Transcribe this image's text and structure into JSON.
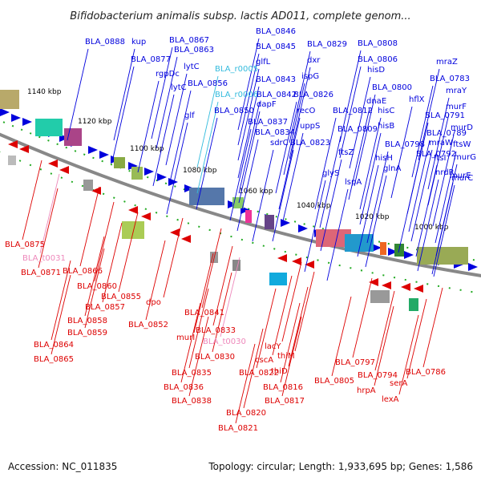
{
  "title": "Bifidobacterium animalis subsp. lactis AD011, complete genom...",
  "footer": {
    "accession": "Accession: NC_011835",
    "summary": "Topology: circular; Length: 1,933,695 bp; Genes: 1,586"
  },
  "colors": {
    "forward": "#0000dd",
    "reverse": "#dd0000",
    "trna": "#33bbdd",
    "trna_rev": "#ee88bb",
    "backbone": "#888888",
    "tick_dot": "#22aa22"
  },
  "ticks": [
    "1140 kbp",
    "1120 kbp",
    "1100 kbp",
    "1080 kbp",
    "1060 kbp",
    "1040 kbp",
    "1020 kbp",
    "1000 kbp"
  ],
  "forward_labels": [
    {
      "text": "BLA_0888",
      "kind": "fwd"
    },
    {
      "text": "kup",
      "kind": "fwd"
    },
    {
      "text": "BLA_0877",
      "kind": "fwd"
    },
    {
      "text": "BLA_0867",
      "kind": "fwd"
    },
    {
      "text": "BLA_0863",
      "kind": "fwd"
    },
    {
      "text": "rgpDc",
      "kind": "fwd"
    },
    {
      "text": "lytC",
      "kind": "fwd"
    },
    {
      "text": "lytC",
      "kind": "fwd"
    },
    {
      "text": "BLA_0856",
      "kind": "fwd"
    },
    {
      "text": "glf",
      "kind": "fwd"
    },
    {
      "text": "BLA_r0005",
      "kind": "trna"
    },
    {
      "text": "BLA_r0006",
      "kind": "trna"
    },
    {
      "text": "BLA_0850",
      "kind": "fwd"
    },
    {
      "text": "BLA_0846",
      "kind": "fwd"
    },
    {
      "text": "BLA_0845",
      "kind": "fwd"
    },
    {
      "text": "glfL",
      "kind": "fwd"
    },
    {
      "text": "BLA_0843",
      "kind": "fwd"
    },
    {
      "text": "BLA_0842",
      "kind": "fwd"
    },
    {
      "text": "dapF",
      "kind": "fwd"
    },
    {
      "text": "BLA_0837",
      "kind": "fwd"
    },
    {
      "text": "BLA_0834",
      "kind": "fwd"
    },
    {
      "text": "sdrC",
      "kind": "fwd"
    },
    {
      "text": "BLA_0829",
      "kind": "fwd"
    },
    {
      "text": "dxr",
      "kind": "fwd"
    },
    {
      "text": "ispG",
      "kind": "fwd"
    },
    {
      "text": "BLA_0826",
      "kind": "fwd"
    },
    {
      "text": "recO",
      "kind": "fwd"
    },
    {
      "text": "uppS",
      "kind": "fwd"
    },
    {
      "text": "BLA_0823",
      "kind": "fwd"
    },
    {
      "text": "BLA_0812",
      "kind": "fwd"
    },
    {
      "text": "BLA_0809",
      "kind": "fwd"
    },
    {
      "text": "ftsZ",
      "kind": "fwd"
    },
    {
      "text": "glyS",
      "kind": "fwd"
    },
    {
      "text": "lspA",
      "kind": "fwd"
    },
    {
      "text": "BLA_0808",
      "kind": "fwd"
    },
    {
      "text": "BLA_0806",
      "kind": "fwd"
    },
    {
      "text": "hisD",
      "kind": "fwd"
    },
    {
      "text": "BLA_0800",
      "kind": "fwd"
    },
    {
      "text": "dnaE",
      "kind": "fwd"
    },
    {
      "text": "hisC",
      "kind": "fwd"
    },
    {
      "text": "hisB",
      "kind": "fwd"
    },
    {
      "text": "BLA_0798",
      "kind": "fwd"
    },
    {
      "text": "hisH",
      "kind": "fwd"
    },
    {
      "text": "glnA",
      "kind": "fwd"
    },
    {
      "text": "mraZ",
      "kind": "fwd"
    },
    {
      "text": "BLA_0783",
      "kind": "fwd"
    },
    {
      "text": "mraY",
      "kind": "fwd"
    },
    {
      "text": "murF",
      "kind": "fwd"
    },
    {
      "text": "hflX",
      "kind": "fwd"
    },
    {
      "text": "BLA_0791",
      "kind": "fwd"
    },
    {
      "text": "BLA_0789",
      "kind": "fwd"
    },
    {
      "text": "mraW",
      "kind": "fwd"
    },
    {
      "text": "BLA_0792",
      "kind": "fwd"
    },
    {
      "text": "ftsI",
      "kind": "fwd"
    },
    {
      "text": "nrdR",
      "kind": "fwd"
    },
    {
      "text": "murD",
      "kind": "fwd"
    },
    {
      "text": "ftsW",
      "kind": "fwd"
    },
    {
      "text": "murG",
      "kind": "fwd"
    },
    {
      "text": "murE",
      "kind": "fwd"
    },
    {
      "text": "murC",
      "kind": "fwd"
    }
  ],
  "reverse_labels": [
    {
      "text": "BLA_0875",
      "kind": "rev"
    },
    {
      "text": "BLA_t0031",
      "kind": "trna_rev"
    },
    {
      "text": "BLA_0871",
      "kind": "rev"
    },
    {
      "text": "BLA_0866",
      "kind": "rev"
    },
    {
      "text": "BLA_0860",
      "kind": "rev"
    },
    {
      "text": "BLA_0857",
      "kind": "rev"
    },
    {
      "text": "BLA_0855",
      "kind": "rev"
    },
    {
      "text": "BLA_0858",
      "kind": "rev"
    },
    {
      "text": "BLA_0859",
      "kind": "rev"
    },
    {
      "text": "BLA_0864",
      "kind": "rev"
    },
    {
      "text": "BLA_0865",
      "kind": "rev"
    },
    {
      "text": "dpo",
      "kind": "rev"
    },
    {
      "text": "BLA_0852",
      "kind": "rev"
    },
    {
      "text": "BLA_0841",
      "kind": "rev"
    },
    {
      "text": "murI",
      "kind": "rev"
    },
    {
      "text": "BLA_0833",
      "kind": "rev"
    },
    {
      "text": "BLA_t0030",
      "kind": "trna_rev"
    },
    {
      "text": "BLA_0830",
      "kind": "rev"
    },
    {
      "text": "BLA_0835",
      "kind": "rev"
    },
    {
      "text": "BLA_0836",
      "kind": "rev"
    },
    {
      "text": "BLA_0838",
      "kind": "rev"
    },
    {
      "text": "lacY",
      "kind": "rev"
    },
    {
      "text": "cscA",
      "kind": "rev"
    },
    {
      "text": "thiM",
      "kind": "rev"
    },
    {
      "text": "BLA_0822",
      "kind": "rev"
    },
    {
      "text": "thiD",
      "kind": "rev"
    },
    {
      "text": "BLA_0816",
      "kind": "rev"
    },
    {
      "text": "BLA_0817",
      "kind": "rev"
    },
    {
      "text": "BLA_0820",
      "kind": "rev"
    },
    {
      "text": "BLA_0821",
      "kind": "rev"
    },
    {
      "text": "BLA_0805",
      "kind": "rev"
    },
    {
      "text": "BLA_0797",
      "kind": "rev"
    },
    {
      "text": "BLA_0794",
      "kind": "rev"
    },
    {
      "text": "hrpA",
      "kind": "rev"
    },
    {
      "text": "serA",
      "kind": "rev"
    },
    {
      "text": "lexA",
      "kind": "rev"
    },
    {
      "text": "BLA_0786",
      "kind": "rev"
    }
  ]
}
